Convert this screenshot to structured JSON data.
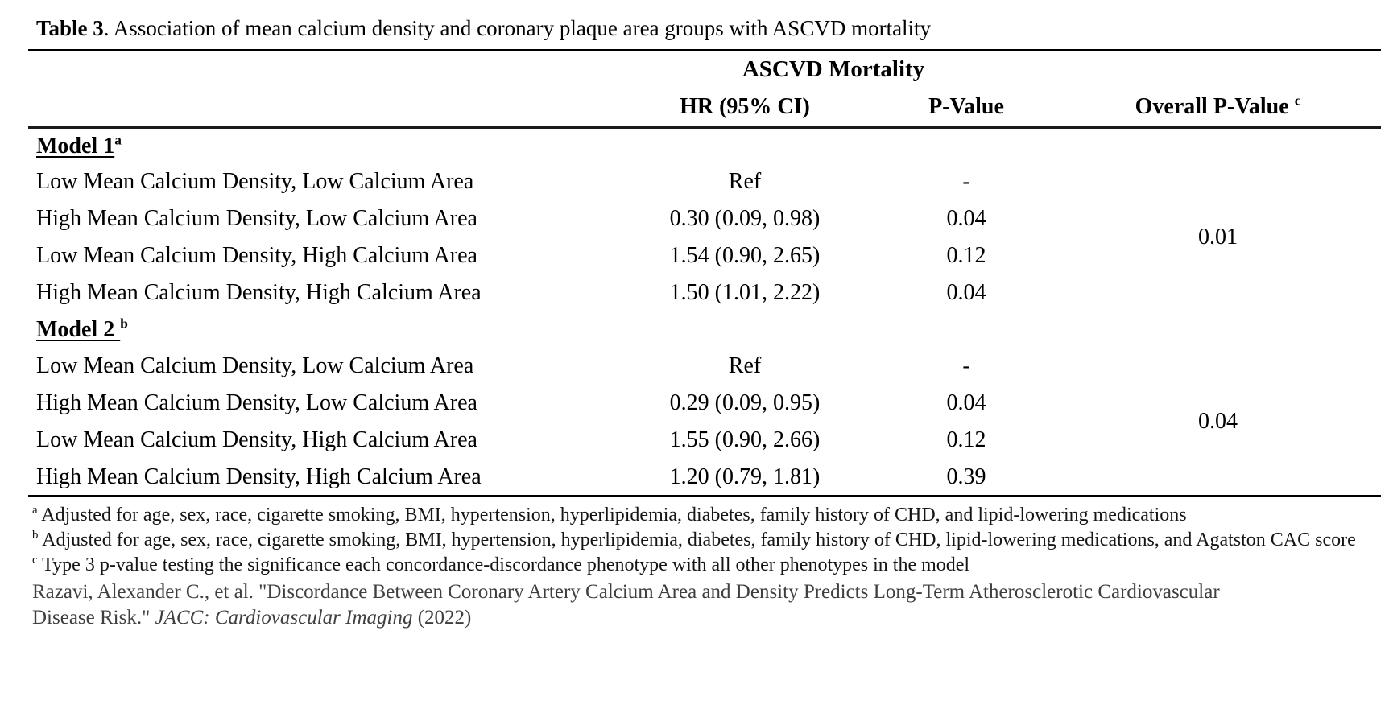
{
  "title": {
    "bold": "Table 3",
    "rest": ". Association of mean calcium density and coronary plaque area groups with ASCVD mortality"
  },
  "table": {
    "group_header": "ASCVD Mortality",
    "columns": {
      "hr": "HR (95% CI)",
      "p": "P-Value",
      "overall": "Overall P-Value ",
      "overall_sup": "c"
    },
    "models": [
      {
        "heading": "Model 1",
        "sup": "a",
        "overall_p": "0.01",
        "rows": [
          {
            "label": "Low Mean Calcium Density, Low Calcium Area",
            "hr": "Ref",
            "p": "-"
          },
          {
            "label": "High Mean Calcium Density, Low Calcium Area",
            "hr": "0.30 (0.09, 0.98)",
            "p": "0.04"
          },
          {
            "label": "Low Mean Calcium Density, High Calcium Area",
            "hr": "1.54 (0.90, 2.65)",
            "p": "0.12"
          },
          {
            "label": "High Mean Calcium Density, High Calcium Area",
            "hr": "1.50 (1.01, 2.22)",
            "p": "0.04"
          }
        ]
      },
      {
        "heading": "Model 2 ",
        "sup": "b",
        "overall_p": "0.04",
        "rows": [
          {
            "label": "Low Mean Calcium Density, Low Calcium Area",
            "hr": "Ref",
            "p": "-"
          },
          {
            "label": "High Mean Calcium Density, Low Calcium Area",
            "hr": "0.29 (0.09, 0.95)",
            "p": "0.04"
          },
          {
            "label": "Low Mean Calcium Density, High Calcium Area",
            "hr": "1.55 (0.90, 2.66)",
            "p": "0.12"
          },
          {
            "label": "High Mean Calcium Density, High Calcium Area",
            "hr": "1.20 (0.79, 1.81)",
            "p": "0.39"
          }
        ]
      }
    ]
  },
  "footnotes": [
    {
      "sup": "a",
      "text": " Adjusted for age, sex, race, cigarette smoking, BMI, hypertension, hyperlipidemia, diabetes, family history of CHD, and lipid-lowering medications"
    },
    {
      "sup": "b",
      "text": " Adjusted for age, sex, race, cigarette smoking, BMI, hypertension, hyperlipidemia, diabetes, family history of CHD, lipid-lowering medications, and Agatston CAC score"
    },
    {
      "sup": "c",
      "text": " Type 3 p-value testing the significance each concordance-discordance phenotype with all other phenotypes in the model"
    }
  ],
  "citation": {
    "before": "Razavi, Alexander C., et al. \"Discordance Between Coronary Artery Calcium Area and Density Predicts Long-Term Atherosclerotic Cardiovascular Disease Risk.\" ",
    "journal": "JACC: Cardiovascular Imaging",
    "after": " (2022)"
  }
}
